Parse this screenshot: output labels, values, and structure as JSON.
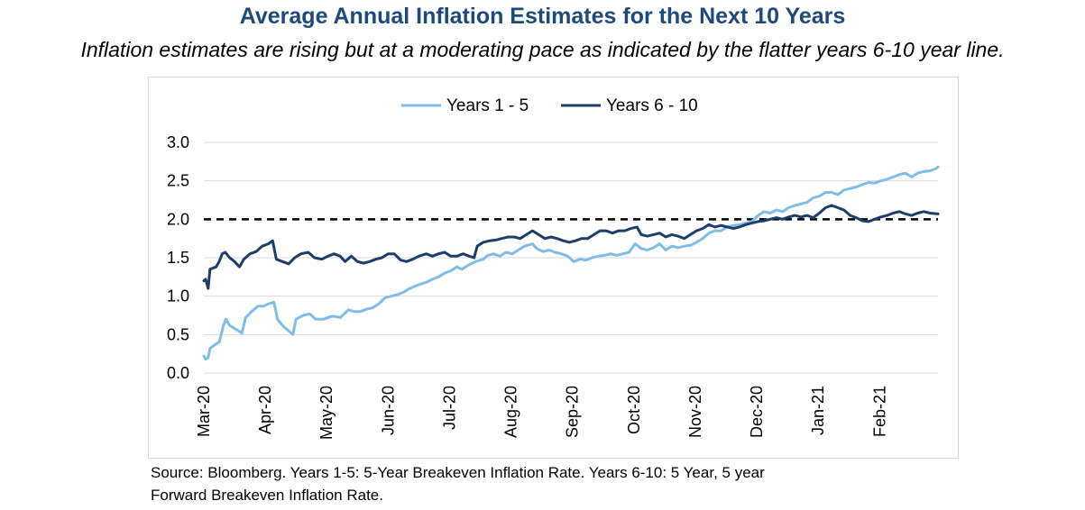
{
  "header": {
    "title": "Average Annual Inflation Estimates for the Next 10 Years",
    "subtitle": "Inflation estimates are rising but at a moderating pace as indicated by the flatter years 6-10 year line."
  },
  "footer": {
    "source_line1": "Source: Bloomberg.  Years 1-5: 5-Year Breakeven Inflation Rate.  Years 6-10: 5 Year, 5 year",
    "source_line2": "Forward Breakeven Inflation Rate."
  },
  "chart_data": {
    "type": "line",
    "title": "Average Annual Inflation Estimates for the Next 10 Years",
    "subtitle": "Inflation estimates are rising but at a moderating pace as indicated by the flatter years 6-10 year line.",
    "xlabel": "",
    "ylabel": "",
    "ylim": [
      0,
      3.0
    ],
    "yticks": [
      "0.0",
      "0.5",
      "1.0",
      "1.5",
      "2.0",
      "2.5",
      "3.0"
    ],
    "x_tick_labels": [
      "Mar-20",
      "Apr-20",
      "May-20",
      "Jun-20",
      "Jul-20",
      "Aug-20",
      "Sep-20",
      "Oct-20",
      "Nov-20",
      "Dec-20",
      "Jan-21",
      "Feb-21"
    ],
    "x_range_months": [
      0,
      11.95
    ],
    "grid": "horizontal",
    "legend_position": "top-center",
    "reference_line": {
      "y": 2.0,
      "style": "dashed",
      "color": "#000000"
    },
    "series": [
      {
        "name": "Years 1 - 5",
        "color": "#7fbde6",
        "points": [
          [
            0.0,
            0.22
          ],
          [
            0.03,
            0.18
          ],
          [
            0.07,
            0.2
          ],
          [
            0.1,
            0.32
          ],
          [
            0.2,
            0.38
          ],
          [
            0.25,
            0.4
          ],
          [
            0.32,
            0.62
          ],
          [
            0.36,
            0.7
          ],
          [
            0.42,
            0.62
          ],
          [
            0.52,
            0.57
          ],
          [
            0.62,
            0.52
          ],
          [
            0.68,
            0.72
          ],
          [
            0.78,
            0.8
          ],
          [
            0.88,
            0.87
          ],
          [
            0.97,
            0.87
          ],
          [
            1.05,
            0.9
          ],
          [
            1.14,
            0.92
          ],
          [
            1.2,
            0.7
          ],
          [
            1.3,
            0.6
          ],
          [
            1.38,
            0.55
          ],
          [
            1.45,
            0.5
          ],
          [
            1.5,
            0.7
          ],
          [
            1.62,
            0.75
          ],
          [
            1.72,
            0.77
          ],
          [
            1.82,
            0.7
          ],
          [
            1.95,
            0.7
          ],
          [
            2.05,
            0.73
          ],
          [
            2.12,
            0.74
          ],
          [
            2.22,
            0.72
          ],
          [
            2.35,
            0.82
          ],
          [
            2.45,
            0.8
          ],
          [
            2.55,
            0.8
          ],
          [
            2.65,
            0.83
          ],
          [
            2.75,
            0.85
          ],
          [
            2.85,
            0.9
          ],
          [
            2.95,
            0.98
          ],
          [
            3.05,
            1.0
          ],
          [
            3.15,
            1.02
          ],
          [
            3.25,
            1.05
          ],
          [
            3.35,
            1.1
          ],
          [
            3.5,
            1.15
          ],
          [
            3.62,
            1.18
          ],
          [
            3.72,
            1.22
          ],
          [
            3.82,
            1.25
          ],
          [
            3.92,
            1.3
          ],
          [
            4.02,
            1.33
          ],
          [
            4.12,
            1.38
          ],
          [
            4.2,
            1.35
          ],
          [
            4.3,
            1.4
          ],
          [
            4.42,
            1.45
          ],
          [
            4.55,
            1.48
          ],
          [
            4.62,
            1.53
          ],
          [
            4.72,
            1.55
          ],
          [
            4.82,
            1.52
          ],
          [
            4.92,
            1.57
          ],
          [
            5.02,
            1.55
          ],
          [
            5.12,
            1.6
          ],
          [
            5.22,
            1.65
          ],
          [
            5.35,
            1.68
          ],
          [
            5.42,
            1.62
          ],
          [
            5.52,
            1.58
          ],
          [
            5.62,
            1.6
          ],
          [
            5.72,
            1.57
          ],
          [
            5.82,
            1.55
          ],
          [
            5.92,
            1.52
          ],
          [
            6.02,
            1.45
          ],
          [
            6.12,
            1.48
          ],
          [
            6.22,
            1.47
          ],
          [
            6.32,
            1.5
          ],
          [
            6.42,
            1.52
          ],
          [
            6.52,
            1.53
          ],
          [
            6.62,
            1.55
          ],
          [
            6.72,
            1.53
          ],
          [
            6.82,
            1.55
          ],
          [
            6.92,
            1.57
          ],
          [
            7.02,
            1.68
          ],
          [
            7.12,
            1.62
          ],
          [
            7.22,
            1.6
          ],
          [
            7.32,
            1.63
          ],
          [
            7.42,
            1.68
          ],
          [
            7.52,
            1.6
          ],
          [
            7.62,
            1.65
          ],
          [
            7.72,
            1.63
          ],
          [
            7.82,
            1.65
          ],
          [
            7.92,
            1.66
          ],
          [
            8.02,
            1.7
          ],
          [
            8.12,
            1.75
          ],
          [
            8.22,
            1.82
          ],
          [
            8.32,
            1.85
          ],
          [
            8.42,
            1.85
          ],
          [
            8.52,
            1.9
          ],
          [
            8.62,
            1.92
          ],
          [
            8.72,
            1.93
          ],
          [
            8.82,
            1.95
          ],
          [
            8.92,
            1.97
          ],
          [
            9.02,
            2.05
          ],
          [
            9.12,
            2.1
          ],
          [
            9.22,
            2.08
          ],
          [
            9.32,
            2.12
          ],
          [
            9.42,
            2.1
          ],
          [
            9.52,
            2.15
          ],
          [
            9.62,
            2.18
          ],
          [
            9.72,
            2.2
          ],
          [
            9.82,
            2.22
          ],
          [
            9.92,
            2.28
          ],
          [
            10.02,
            2.3
          ],
          [
            10.12,
            2.35
          ],
          [
            10.22,
            2.35
          ],
          [
            10.32,
            2.32
          ],
          [
            10.42,
            2.38
          ],
          [
            10.52,
            2.4
          ],
          [
            10.62,
            2.42
          ],
          [
            10.72,
            2.45
          ],
          [
            10.82,
            2.48
          ],
          [
            10.92,
            2.47
          ],
          [
            11.02,
            2.5
          ],
          [
            11.12,
            2.52
          ],
          [
            11.22,
            2.55
          ],
          [
            11.32,
            2.58
          ],
          [
            11.42,
            2.6
          ],
          [
            11.52,
            2.55
          ],
          [
            11.62,
            2.6
          ],
          [
            11.72,
            2.62
          ],
          [
            11.82,
            2.63
          ],
          [
            11.92,
            2.66
          ],
          [
            11.95,
            2.68
          ]
        ]
      },
      {
        "name": "Years 6 - 10",
        "color": "#1f3d6b",
        "points": [
          [
            0.0,
            1.2
          ],
          [
            0.03,
            1.22
          ],
          [
            0.07,
            1.1
          ],
          [
            0.1,
            1.35
          ],
          [
            0.2,
            1.38
          ],
          [
            0.25,
            1.45
          ],
          [
            0.3,
            1.55
          ],
          [
            0.35,
            1.57
          ],
          [
            0.42,
            1.5
          ],
          [
            0.5,
            1.45
          ],
          [
            0.58,
            1.38
          ],
          [
            0.65,
            1.48
          ],
          [
            0.75,
            1.55
          ],
          [
            0.85,
            1.58
          ],
          [
            0.95,
            1.65
          ],
          [
            1.05,
            1.68
          ],
          [
            1.12,
            1.72
          ],
          [
            1.18,
            1.48
          ],
          [
            1.28,
            1.45
          ],
          [
            1.38,
            1.42
          ],
          [
            1.48,
            1.5
          ],
          [
            1.58,
            1.55
          ],
          [
            1.7,
            1.57
          ],
          [
            1.8,
            1.5
          ],
          [
            1.92,
            1.48
          ],
          [
            2.02,
            1.52
          ],
          [
            2.12,
            1.55
          ],
          [
            2.22,
            1.52
          ],
          [
            2.3,
            1.45
          ],
          [
            2.4,
            1.52
          ],
          [
            2.5,
            1.45
          ],
          [
            2.6,
            1.43
          ],
          [
            2.7,
            1.45
          ],
          [
            2.8,
            1.48
          ],
          [
            2.9,
            1.5
          ],
          [
            3.0,
            1.55
          ],
          [
            3.1,
            1.55
          ],
          [
            3.2,
            1.47
          ],
          [
            3.3,
            1.45
          ],
          [
            3.4,
            1.48
          ],
          [
            3.5,
            1.52
          ],
          [
            3.62,
            1.55
          ],
          [
            3.72,
            1.52
          ],
          [
            3.82,
            1.55
          ],
          [
            3.92,
            1.57
          ],
          [
            4.02,
            1.52
          ],
          [
            4.12,
            1.52
          ],
          [
            4.22,
            1.55
          ],
          [
            4.32,
            1.52
          ],
          [
            4.4,
            1.5
          ],
          [
            4.45,
            1.65
          ],
          [
            4.55,
            1.7
          ],
          [
            4.65,
            1.72
          ],
          [
            4.75,
            1.73
          ],
          [
            4.85,
            1.75
          ],
          [
            4.95,
            1.77
          ],
          [
            5.05,
            1.77
          ],
          [
            5.15,
            1.75
          ],
          [
            5.25,
            1.8
          ],
          [
            5.35,
            1.85
          ],
          [
            5.45,
            1.8
          ],
          [
            5.55,
            1.75
          ],
          [
            5.65,
            1.77
          ],
          [
            5.75,
            1.75
          ],
          [
            5.85,
            1.72
          ],
          [
            5.95,
            1.7
          ],
          [
            6.05,
            1.72
          ],
          [
            6.15,
            1.75
          ],
          [
            6.25,
            1.75
          ],
          [
            6.35,
            1.8
          ],
          [
            6.45,
            1.85
          ],
          [
            6.55,
            1.85
          ],
          [
            6.65,
            1.82
          ],
          [
            6.75,
            1.85
          ],
          [
            6.85,
            1.85
          ],
          [
            6.95,
            1.88
          ],
          [
            7.05,
            1.9
          ],
          [
            7.12,
            1.8
          ],
          [
            7.22,
            1.78
          ],
          [
            7.32,
            1.8
          ],
          [
            7.42,
            1.82
          ],
          [
            7.52,
            1.77
          ],
          [
            7.62,
            1.8
          ],
          [
            7.72,
            1.78
          ],
          [
            7.82,
            1.75
          ],
          [
            7.92,
            1.8
          ],
          [
            8.02,
            1.85
          ],
          [
            8.12,
            1.88
          ],
          [
            8.22,
            1.93
          ],
          [
            8.32,
            1.9
          ],
          [
            8.42,
            1.92
          ],
          [
            8.52,
            1.9
          ],
          [
            8.62,
            1.88
          ],
          [
            8.72,
            1.9
          ],
          [
            8.82,
            1.93
          ],
          [
            8.92,
            1.95
          ],
          [
            9.02,
            1.97
          ],
          [
            9.12,
            1.98
          ],
          [
            9.22,
            2.0
          ],
          [
            9.32,
            2.02
          ],
          [
            9.42,
            2.0
          ],
          [
            9.52,
            2.03
          ],
          [
            9.62,
            2.05
          ],
          [
            9.72,
            2.03
          ],
          [
            9.82,
            2.05
          ],
          [
            9.92,
            2.02
          ],
          [
            10.02,
            2.08
          ],
          [
            10.12,
            2.15
          ],
          [
            10.22,
            2.18
          ],
          [
            10.32,
            2.15
          ],
          [
            10.42,
            2.12
          ],
          [
            10.52,
            2.05
          ],
          [
            10.62,
            2.02
          ],
          [
            10.72,
            1.98
          ],
          [
            10.82,
            1.97
          ],
          [
            10.92,
            2.0
          ],
          [
            11.02,
            2.03
          ],
          [
            11.12,
            2.05
          ],
          [
            11.22,
            2.08
          ],
          [
            11.32,
            2.1
          ],
          [
            11.42,
            2.07
          ],
          [
            11.52,
            2.05
          ],
          [
            11.62,
            2.08
          ],
          [
            11.72,
            2.1
          ],
          [
            11.82,
            2.08
          ],
          [
            11.95,
            2.07
          ]
        ]
      }
    ]
  }
}
